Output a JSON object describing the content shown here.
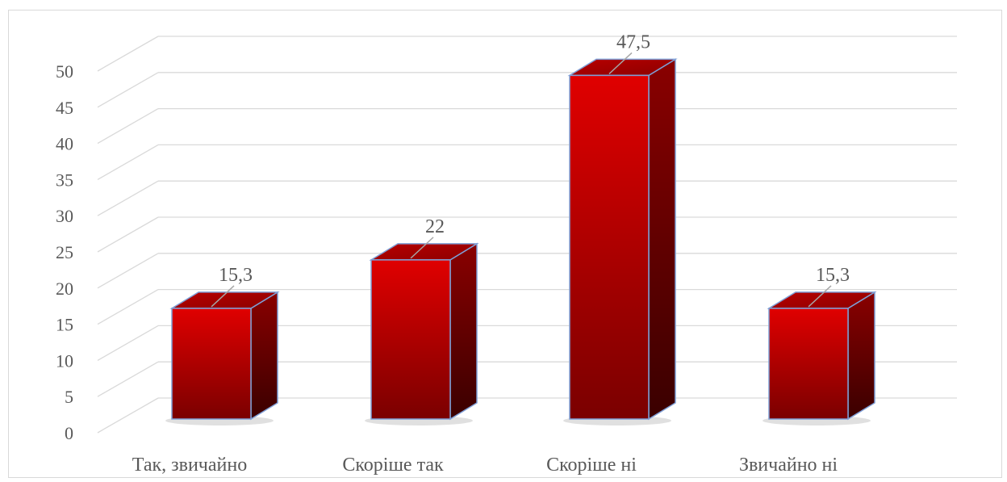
{
  "chart_data": {
    "type": "bar",
    "style": "3d-column",
    "categories": [
      "Так, звичайно",
      "Скоріше так",
      "Скоріше ні",
      "Звичайно ні"
    ],
    "values": [
      15.3,
      22,
      47.5,
      15.3
    ],
    "value_labels": [
      "15,3",
      "22",
      "47,5",
      "15,3"
    ],
    "title": "",
    "xlabel": "",
    "ylabel": "",
    "ylim": [
      0,
      50
    ],
    "yticks": [
      0,
      5,
      10,
      15,
      20,
      25,
      30,
      35,
      40,
      45,
      50
    ],
    "grid": true,
    "legend": "none",
    "colors": {
      "bar_front_top": "#e00000",
      "bar_front_bottom": "#7a0000",
      "bar_side_top": "#8a0000",
      "bar_side_bottom": "#3a0000",
      "bar_top": "#a80000",
      "bar_outline": "#7f9fd6",
      "grid": "#d9d9d9",
      "text": "#595959"
    }
  }
}
